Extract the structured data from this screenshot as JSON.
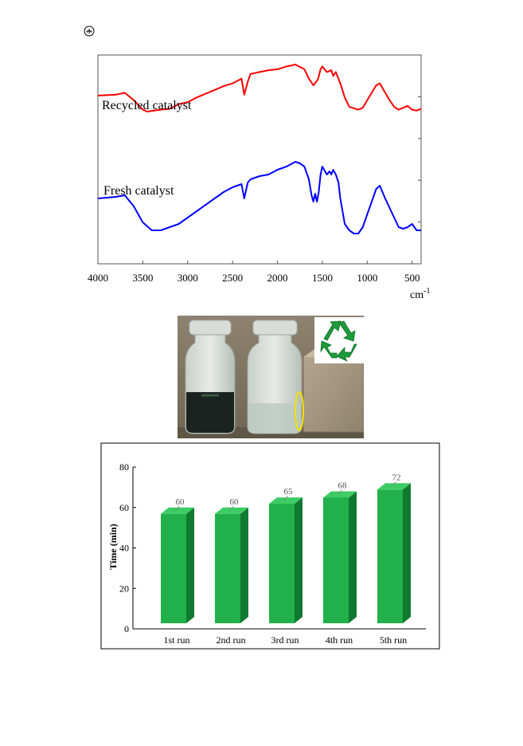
{
  "chart_data": [
    {
      "type": "line",
      "xlabel": "cm-1",
      "xlabel_main": "cm",
      "xlabel_sup": "-1",
      "x_reversed": true,
      "xlim": [
        4000,
        400
      ],
      "ticks": [
        4000,
        3500,
        3000,
        2500,
        2000,
        1500,
        1000,
        500
      ],
      "tick_labels": [
        "4000",
        "3500",
        "3000",
        "2500",
        "2000",
        "1500",
        "1000",
        "500"
      ],
      "y_ticks_labeled": false,
      "grid": false,
      "series": [
        {
          "name": "Recycled catalyst",
          "color": "#ff0000",
          "points": [
            [
              4000,
              0.33
            ],
            [
              3800,
              0.32
            ],
            [
              3700,
              0.3
            ],
            [
              3600,
              0.38
            ],
            [
              3500,
              0.48
            ],
            [
              3450,
              0.5
            ],
            [
              3300,
              0.48
            ],
            [
              3200,
              0.47
            ],
            [
              3100,
              0.42
            ],
            [
              3000,
              0.4
            ],
            [
              2900,
              0.35
            ],
            [
              2800,
              0.31
            ],
            [
              2700,
              0.27
            ],
            [
              2600,
              0.23
            ],
            [
              2500,
              0.2
            ],
            [
              2400,
              0.15
            ],
            [
              2370,
              0.32
            ],
            [
              2330,
              0.18
            ],
            [
              2300,
              0.1
            ],
            [
              2200,
              0.08
            ],
            [
              2100,
              0.06
            ],
            [
              2000,
              0.05
            ],
            [
              1900,
              0.02
            ],
            [
              1800,
              0.0
            ],
            [
              1700,
              0.05
            ],
            [
              1650,
              0.15
            ],
            [
              1600,
              0.22
            ],
            [
              1550,
              0.16
            ],
            [
              1520,
              0.05
            ],
            [
              1500,
              0.02
            ],
            [
              1450,
              0.08
            ],
            [
              1400,
              0.06
            ],
            [
              1380,
              0.12
            ],
            [
              1350,
              0.08
            ],
            [
              1300,
              0.2
            ],
            [
              1250,
              0.35
            ],
            [
              1200,
              0.45
            ],
            [
              1100,
              0.48
            ],
            [
              1050,
              0.46
            ],
            [
              1000,
              0.38
            ],
            [
              950,
              0.3
            ],
            [
              900,
              0.22
            ],
            [
              860,
              0.2
            ],
            [
              800,
              0.3
            ],
            [
              750,
              0.38
            ],
            [
              700,
              0.45
            ],
            [
              650,
              0.48
            ],
            [
              600,
              0.46
            ],
            [
              550,
              0.44
            ],
            [
              500,
              0.48
            ],
            [
              450,
              0.49
            ],
            [
              400,
              0.47
            ]
          ]
        },
        {
          "name": "Fresh catalyst",
          "color": "#0000ff",
          "points": [
            [
              4000,
              0.7
            ],
            [
              3800,
              0.69
            ],
            [
              3700,
              0.68
            ],
            [
              3600,
              0.75
            ],
            [
              3500,
              0.85
            ],
            [
              3400,
              0.9
            ],
            [
              3300,
              0.9
            ],
            [
              3200,
              0.88
            ],
            [
              3100,
              0.86
            ],
            [
              3000,
              0.82
            ],
            [
              2900,
              0.78
            ],
            [
              2800,
              0.74
            ],
            [
              2700,
              0.7
            ],
            [
              2600,
              0.66
            ],
            [
              2500,
              0.63
            ],
            [
              2400,
              0.61
            ],
            [
              2370,
              0.7
            ],
            [
              2330,
              0.6
            ],
            [
              2300,
              0.58
            ],
            [
              2200,
              0.56
            ],
            [
              2100,
              0.55
            ],
            [
              2000,
              0.52
            ],
            [
              1900,
              0.5
            ],
            [
              1800,
              0.47
            ],
            [
              1750,
              0.48
            ],
            [
              1700,
              0.5
            ],
            [
              1650,
              0.58
            ],
            [
              1620,
              0.68
            ],
            [
              1600,
              0.72
            ],
            [
              1580,
              0.67
            ],
            [
              1560,
              0.72
            ],
            [
              1540,
              0.66
            ],
            [
              1520,
              0.55
            ],
            [
              1500,
              0.5
            ],
            [
              1480,
              0.52
            ],
            [
              1450,
              0.55
            ],
            [
              1420,
              0.53
            ],
            [
              1400,
              0.55
            ],
            [
              1380,
              0.52
            ],
            [
              1350,
              0.55
            ],
            [
              1320,
              0.6
            ],
            [
              1300,
              0.7
            ],
            [
              1250,
              0.86
            ],
            [
              1200,
              0.9
            ],
            [
              1150,
              0.92
            ],
            [
              1100,
              0.92
            ],
            [
              1050,
              0.88
            ],
            [
              1000,
              0.8
            ],
            [
              950,
              0.72
            ],
            [
              900,
              0.64
            ],
            [
              860,
              0.62
            ],
            [
              800,
              0.7
            ],
            [
              750,
              0.76
            ],
            [
              700,
              0.82
            ],
            [
              650,
              0.88
            ],
            [
              600,
              0.89
            ],
            [
              550,
              0.88
            ],
            [
              500,
              0.86
            ],
            [
              450,
              0.9
            ],
            [
              400,
              0.9
            ]
          ]
        }
      ]
    },
    {
      "type": "bar",
      "categories": [
        "1st run",
        "2nd run",
        "3rd run",
        "4th run",
        "5th run"
      ],
      "values": [
        60,
        60,
        65,
        68,
        72
      ],
      "value_labels": [
        "60",
        "60",
        "65",
        "68",
        "72"
      ],
      "ylabel": "Time (min)",
      "ylim": [
        0,
        80
      ],
      "yticks": [
        0,
        20,
        40,
        60,
        80
      ],
      "ytick_labels": [
        "0",
        "20",
        "40",
        "60",
        "80"
      ],
      "bar_style": "3d",
      "color_front": "#22b04b",
      "color_side": "#0f7a30",
      "color_top": "#3ccc63",
      "grid": false,
      "legend": "none"
    }
  ],
  "photo": {
    "content": "vials-and-magnet",
    "icon": "recycle-icon",
    "highlight_color": "#f2e000"
  }
}
